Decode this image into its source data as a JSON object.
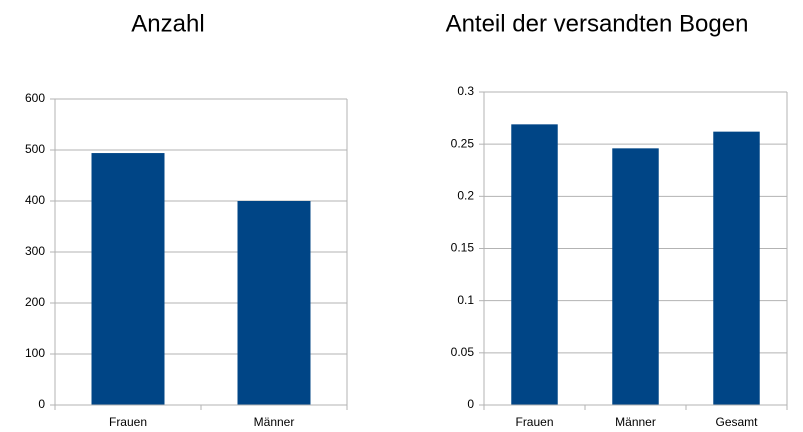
{
  "chart_data": [
    {
      "type": "bar",
      "title": "Anzahl",
      "categories": [
        "Frauen",
        "Männer"
      ],
      "values": [
        494,
        400
      ],
      "color": "#004586",
      "ylim": [
        0,
        600
      ],
      "yticks": [
        0,
        100,
        200,
        300,
        400,
        500,
        600
      ],
      "grid": true
    },
    {
      "type": "bar",
      "title": "Anteil der versandten Bogen",
      "categories": [
        "Frauen",
        "Männer",
        "Gesamt"
      ],
      "values": [
        0.269,
        0.246,
        0.262
      ],
      "color": "#004586",
      "ylim": [
        0,
        0.3
      ],
      "yticks": [
        0,
        0.05,
        0.1,
        0.15,
        0.2,
        0.25,
        0.3
      ],
      "grid": true
    }
  ]
}
